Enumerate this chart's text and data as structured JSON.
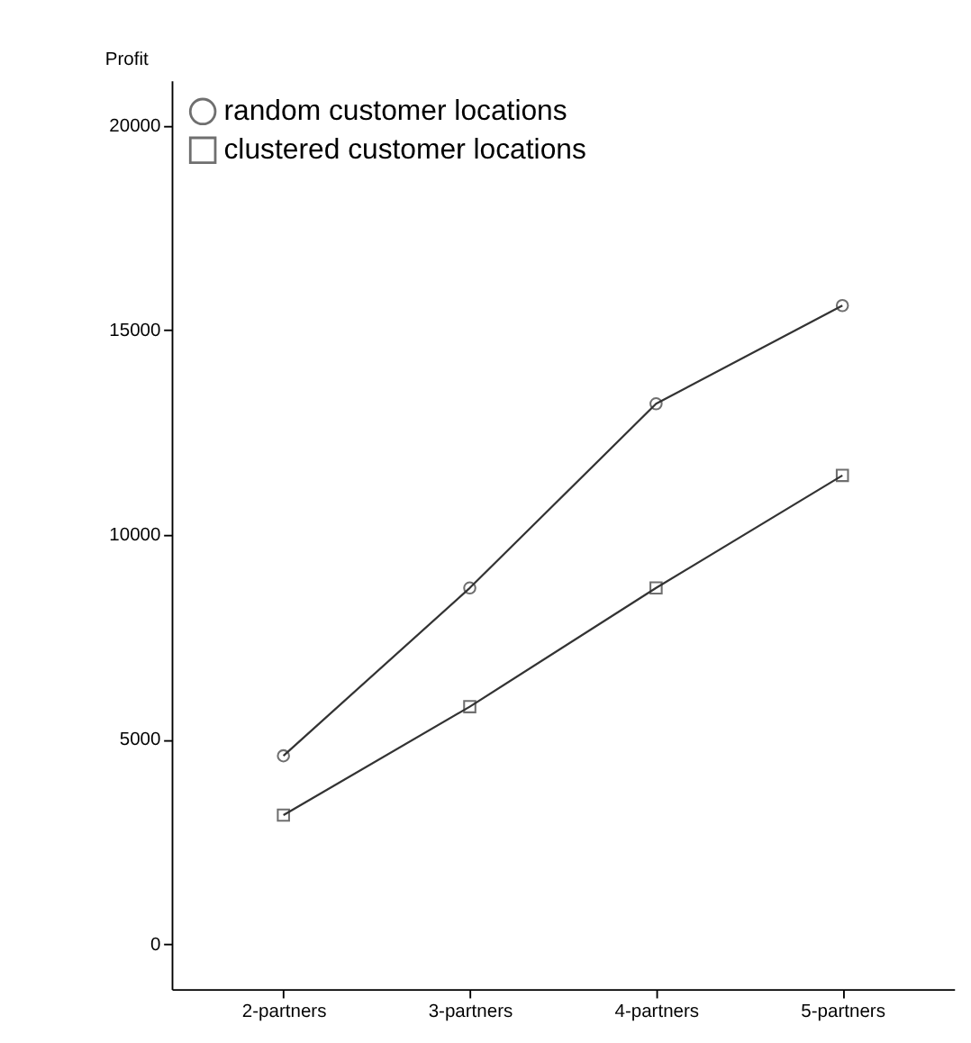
{
  "chart_data": {
    "type": "line",
    "ylabel": "Profit",
    "categories": [
      "2-partners",
      "3-partners",
      "4-partners",
      "5-partners"
    ],
    "series": [
      {
        "name": "random customer locations",
        "color": "#333333",
        "marker": "circle",
        "values": [
          4600,
          8700,
          13200,
          15600
        ]
      },
      {
        "name": "clustered customer locations",
        "color": "#333333",
        "marker": "square",
        "values": [
          3150,
          5800,
          8700,
          11450
        ]
      }
    ],
    "ylim": [
      -1100,
      21100
    ],
    "yticks": [
      0,
      5000,
      10000,
      15000,
      20000
    ],
    "grid": false,
    "legend": "top left",
    "line_style": "solid"
  }
}
